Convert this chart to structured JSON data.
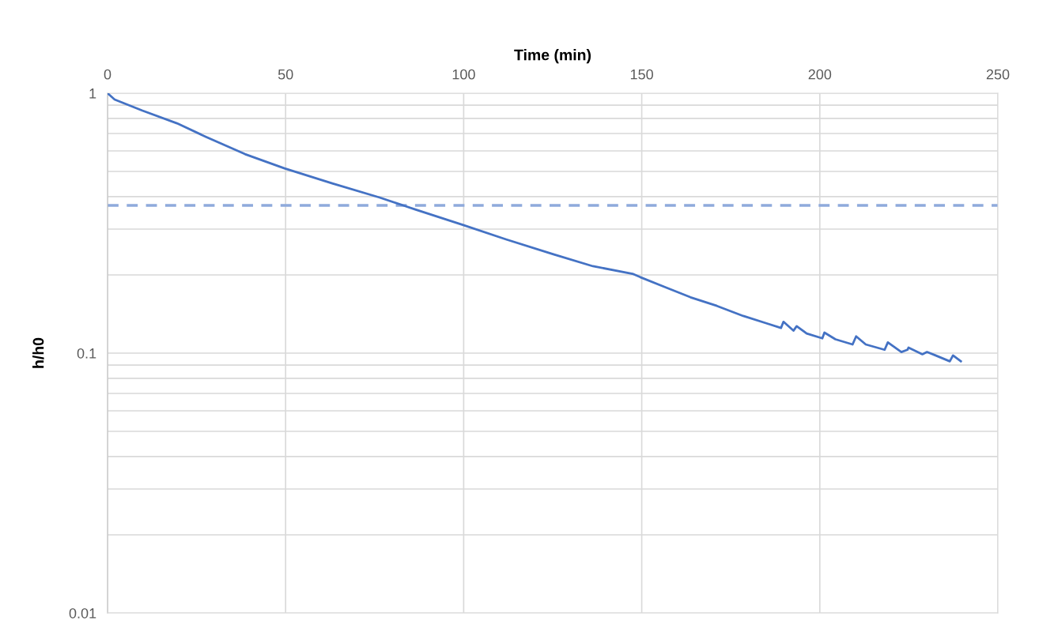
{
  "chart_data": {
    "type": "line",
    "xlabel": "Time (min)",
    "ylabel": "h/h0",
    "x": [
      0,
      2,
      9.8,
      19.5,
      27.5,
      38.6,
      49.7,
      63.1,
      76.4,
      86.4,
      99.9,
      111.9,
      125.2,
      136.3,
      147.4,
      149.6,
      156.3,
      163.7,
      171.1,
      178.5,
      185.2,
      189.1,
      189.8,
      192.6,
      193.5,
      196.3,
      200.7,
      201.3,
      204.4,
      209.2,
      210.2,
      212.9,
      218.2,
      219.1,
      222.9,
      224.6,
      224.9,
      228.8,
      230.1,
      232.5,
      236.5,
      237.4,
      239.6
    ],
    "series": [
      {
        "color": "#4472c4",
        "values": [
          1.0,
          0.946,
          0.857,
          0.766,
          0.681,
          0.583,
          0.514,
          0.45,
          0.397,
          0.357,
          0.311,
          0.274,
          0.24,
          0.216,
          0.202,
          0.196,
          0.18,
          0.164,
          0.152,
          0.139,
          0.13,
          0.125,
          0.132,
          0.122,
          0.127,
          0.119,
          0.114,
          0.12,
          0.113,
          0.108,
          0.116,
          0.108,
          0.103,
          0.11,
          0.101,
          0.103,
          0.105,
          0.099,
          0.101,
          0.098,
          0.093,
          0.098,
          0.093
        ]
      }
    ],
    "log": "y",
    "xlim": [
      0,
      250
    ],
    "xticks": [
      0,
      50,
      100,
      150,
      200,
      250
    ],
    "ylim": [
      0.01,
      1
    ],
    "yticks": [
      0.01,
      {
        "value": 0.02,
        "label": null
      },
      {
        "value": 0.03,
        "label": null
      },
      {
        "value": 0.04,
        "label": null
      },
      {
        "value": 0.05,
        "label": null
      },
      {
        "value": 0.06,
        "label": null
      },
      {
        "value": 0.07,
        "label": null
      },
      {
        "value": 0.08,
        "label": null
      },
      {
        "value": 0.09,
        "label": null
      },
      0.1,
      {
        "value": 0.2,
        "label": null
      },
      {
        "value": 0.3,
        "label": null
      },
      {
        "value": 0.4,
        "label": null
      },
      {
        "value": 0.5,
        "label": null
      },
      {
        "value": 0.6,
        "label": null
      },
      {
        "value": 0.7,
        "label": null
      },
      {
        "value": 0.8,
        "label": null
      },
      {
        "value": 0.9,
        "label": null
      },
      1
    ],
    "ref_lines": [
      {
        "axis": "y",
        "value": 0.37,
        "color": "#8faadc",
        "line_style": "dashed"
      }
    ],
    "grid": true,
    "marker": "none",
    "line_style": "solid"
  }
}
